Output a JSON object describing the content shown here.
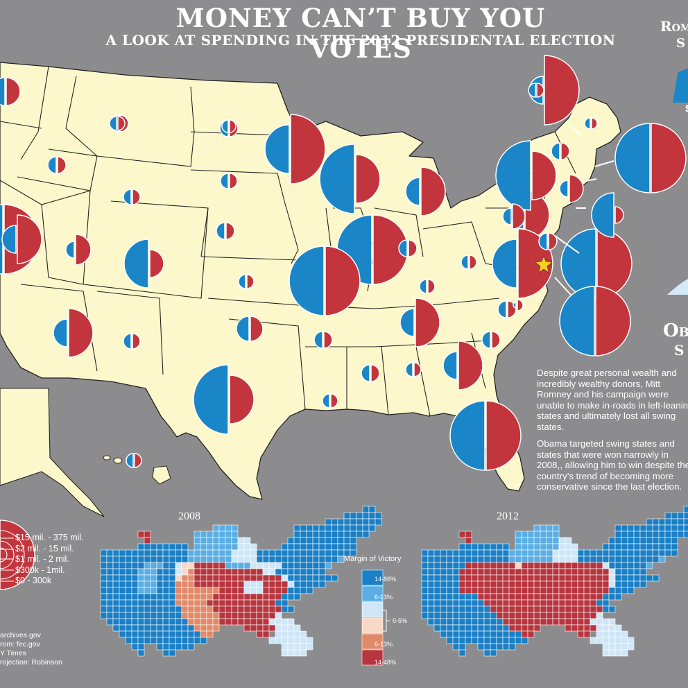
{
  "title": "MONEY CAN’T BUY YOU VOTES",
  "subtitle": "A LOOK AT SPENDING IN THE 2012 PRESIDENTAL ELECTION",
  "romney_heading": "Rom",
  "romney_subheading": "S",
  "romney_amount": "$",
  "obama_heading": "Oba",
  "obama_subheading": "S",
  "paragraph_1": "Despite great personal wealth and incredibly wealthy donors, Mitt Romney and his campaign were unable to make in-roads in left-leaning states and ultimately lost all swing states.",
  "paragraph_2": "Obama targeted swing states and states that were won narrowly in 2008,, allowing him to win despite the country’s trend of becoming more conservative since the last election.",
  "colors": {
    "obama_blue": "#1a86c8",
    "romney_red": "#c3353c",
    "land": "#fdf8cc",
    "background": "#8c8c8e",
    "star": "#f5d020"
  },
  "spending_legend": [
    "$15 mil. - 375 mil.",
    "$2 mil. - 15 mil.",
    "$1 mil. - 2 mil.",
    "$300k - 1mil.",
    "$0 - 300k"
  ],
  "sources": [
    "archives.gov",
    "rom: fec.gov",
    "Y Times",
    "rojection: Robinson"
  ],
  "cartogram_years": [
    "2008",
    "2012"
  ],
  "margin_legend": {
    "title": "Margin of Victory",
    "items": [
      {
        "label": "14-86%",
        "color": "#1a7fc4"
      },
      {
        "label": "6-13%",
        "color": "#5aaee4"
      },
      {
        "label": "0-5%",
        "color": "#cfe6f7"
      },
      {
        "label": "",
        "color": "#f8d9c8"
      },
      {
        "label": "6-13%",
        "color": "#e08a6a"
      },
      {
        "label": "14-48%",
        "color": "#b7353e"
      }
    ]
  },
  "state_spending_circles": [
    {
      "state": "WA",
      "obama": "$1 mil. - 2 mil.",
      "romney": "$1 mil. - 2 mil."
    },
    {
      "state": "MT",
      "obama": "$300k - 1mil.",
      "romney": "$300k - 1mil."
    },
    {
      "state": "ND",
      "obama": "$300k - 1mil.",
      "romney": "$300k - 1mil."
    },
    {
      "state": "MN",
      "obama": "$2 mil. - 15 mil.",
      "romney": "$15 mil. - 375 mil."
    },
    {
      "state": "WI",
      "obama": "$15 mil. - 375 mil.",
      "romney": "$2 mil. - 15 mil."
    },
    {
      "state": "MI",
      "obama": "$1 mil. - 2 mil.",
      "romney": "$2 mil. - 15 mil."
    },
    {
      "state": "OH",
      "obama": "$15 mil. - 375 mil.",
      "romney": "$15 mil. - 375 mil."
    },
    {
      "state": "PA",
      "obama": "$1 mil. - 2 mil.",
      "romney": "$2 mil. - 15 mil."
    },
    {
      "state": "NY",
      "obama": "$15 mil. - 375 mil.",
      "romney": "$2 mil. - 15 mil."
    },
    {
      "state": "MA",
      "obama": "$15 mil. - 375 mil.",
      "romney": "$15 mil. - 375 mil."
    },
    {
      "state": "ME",
      "obama": "$1 mil. - 2 mil.",
      "romney": "$15 mil. - 375 mil."
    },
    {
      "state": "VA",
      "obama": "$2 mil. - 15 mil.",
      "romney": "$15 mil. - 375 mil."
    },
    {
      "state": "FL",
      "obama": "$15 mil. - 375 mil.",
      "romney": "$15 mil. - 375 mil."
    },
    {
      "state": "TX",
      "obama": "$15 mil. - 375 mil.",
      "romney": "$2 mil. - 15 mil."
    },
    {
      "state": "CA",
      "obama": "$15 mil. - 375 mil.",
      "romney": "$15 mil. - 375 mil."
    },
    {
      "state": "IL",
      "obama": "$15 mil. - 375 mil.",
      "romney": "$15 mil. - 375 mil."
    },
    {
      "state": "CO",
      "obama": "$2 mil. - 15 mil.",
      "romney": "$1 mil. - 2 mil."
    },
    {
      "state": "NV",
      "obama": "$1 mil. - 2 mil.",
      "romney": "$2 mil. - 15 mil."
    },
    {
      "state": "AZ",
      "obama": "$1 mil. - 2 mil.",
      "romney": "$2 mil. - 15 mil."
    },
    {
      "state": "NC",
      "obama": "$1 mil. - 2 mil.",
      "romney": "$2 mil. - 15 mil."
    },
    {
      "state": "GA",
      "obama": "$1 mil. - 2 mil.",
      "romney": "$2 mil. - 15 mil."
    },
    {
      "state": "NJ",
      "obama": "$15 mil. - 375 mil.",
      "romney": "$15 mil. - 375 mil."
    },
    {
      "state": "MD/DC",
      "obama": "$15 mil. - 375 mil.",
      "romney": "$15 mil. - 375 mil."
    }
  ]
}
